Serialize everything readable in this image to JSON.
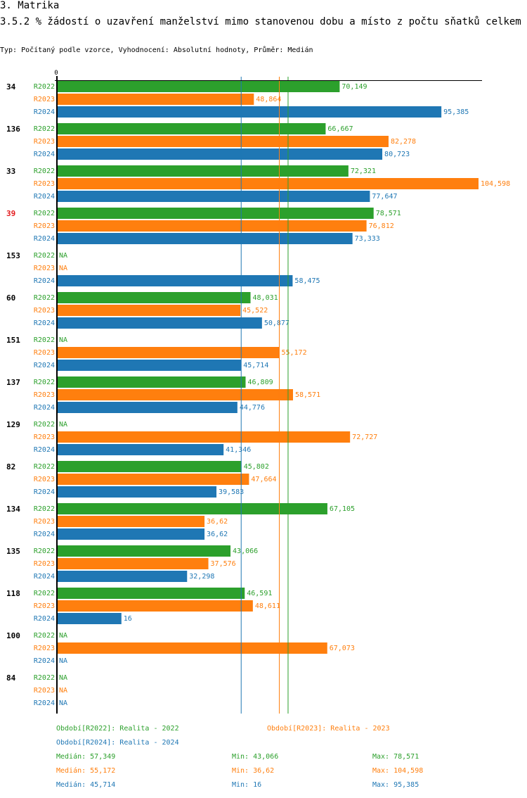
{
  "header": {
    "section": "3. Matrika",
    "title": "3.5.2 % žádostí o uzavření manželství mimo stanovenou dobu a místo z počtu sňatků celkem",
    "subtitle": "Typ: Počítaný podle vzorce, Vyhodnocení: Absolutní hodnoty, Průměr: Medián"
  },
  "colors": {
    "R2022": "#2ca02c",
    "R2023": "#ff7f0e",
    "R2024": "#1f77b4",
    "highlight": "#e31a1c"
  },
  "chart_data": {
    "type": "bar",
    "orientation": "horizontal",
    "title": "3.5.2 % žádostí o uzavření manželství mimo stanovenou dobu a místo z počtu sňatků celkem",
    "xlabel": "",
    "ylabel": "",
    "axis_tick_labels": [
      "0"
    ],
    "xlim": [
      0,
      105.5
    ],
    "na_label": "NA",
    "highlighted_category": "39",
    "series_names": [
      "R2022",
      "R2023",
      "R2024"
    ],
    "categories": [
      "34",
      "136",
      "33",
      "39",
      "153",
      "60",
      "151",
      "137",
      "129",
      "82",
      "134",
      "135",
      "118",
      "100",
      "84"
    ],
    "series": [
      {
        "name": "R2022",
        "values": [
          70.149,
          66.667,
          72.321,
          78.571,
          null,
          48.031,
          null,
          46.809,
          null,
          45.802,
          67.105,
          43.066,
          46.591,
          null,
          null
        ],
        "labels": [
          "70,149",
          "66,667",
          "72,321",
          "78,571",
          "NA",
          "48,031",
          "NA",
          "46,809",
          "NA",
          "45,802",
          "67,105",
          "43,066",
          "46,591",
          "NA",
          "NA"
        ]
      },
      {
        "name": "R2023",
        "values": [
          48.864,
          82.278,
          104.598,
          76.812,
          null,
          45.522,
          55.172,
          58.571,
          72.727,
          47.664,
          36.62,
          37.576,
          48.611,
          67.073,
          null
        ],
        "labels": [
          "48,864",
          "82,278",
          "104,598",
          "76,812",
          "NA",
          "45,522",
          "55,172",
          "58,571",
          "72,727",
          "47,664",
          "36,62",
          "37,576",
          "48,611",
          "67,073",
          "NA"
        ]
      },
      {
        "name": "R2024",
        "values": [
          95.385,
          80.723,
          77.647,
          73.333,
          58.475,
          50.877,
          45.714,
          44.776,
          41.346,
          39.583,
          36.62,
          32.298,
          16,
          null,
          null
        ],
        "labels": [
          "95,385",
          "80,723",
          "77,647",
          "73,333",
          "58,475",
          "50,877",
          "45,714",
          "44,776",
          "41,346",
          "39,583",
          "36,62",
          "32,298",
          "16",
          "NA",
          "NA"
        ]
      }
    ],
    "median_lines": [
      {
        "series": "R2022",
        "value": 57.349
      },
      {
        "series": "R2023",
        "value": 55.172
      },
      {
        "series": "R2024",
        "value": 45.714
      }
    ]
  },
  "legend": {
    "periods": [
      {
        "series": "R2022",
        "text": "Období[R2022]: Realita - 2022"
      },
      {
        "series": "R2023",
        "text": "Období[R2023]: Realita - 2023"
      },
      {
        "series": "R2024",
        "text": "Období[R2024]: Realita - 2024"
      }
    ],
    "stats": [
      {
        "series": "R2022",
        "median": "Medián: 57,349",
        "min": "Min: 43,066",
        "max": "Max: 78,571"
      },
      {
        "series": "R2023",
        "median": "Medián: 55,172",
        "min": "Min: 36,62",
        "max": "Max: 104,598"
      },
      {
        "series": "R2024",
        "median": "Medián: 45,714",
        "min": "Min: 16",
        "max": "Max: 95,385"
      }
    ]
  }
}
